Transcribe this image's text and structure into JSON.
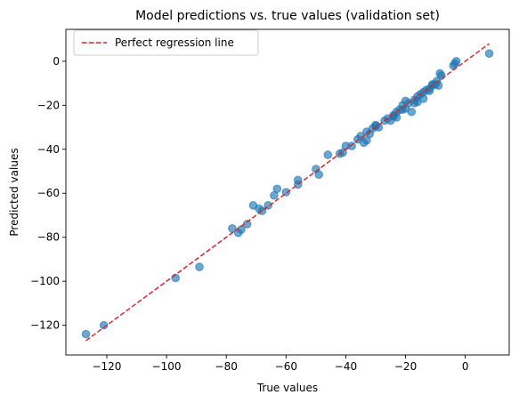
{
  "chart_data": {
    "type": "scatter",
    "title": "Model predictions vs. true values (validation set)",
    "xlabel": "True values",
    "ylabel": "Predicted values",
    "xlim": [
      -133.7,
      14.7
    ],
    "ylim": [
      -133.5,
      14.5
    ],
    "xticks": [
      -120,
      -100,
      -80,
      -60,
      -40,
      -20,
      0
    ],
    "yticks": [
      -120,
      -100,
      -80,
      -60,
      -40,
      -20,
      0
    ],
    "grid": false,
    "legend": {
      "position": "top-left",
      "entries": [
        "Perfect regression line"
      ]
    },
    "colors": {
      "points": "#1f77b4",
      "line": "#d62728"
    },
    "series": [
      {
        "kind": "scatter",
        "points": [
          [
            -127,
            -124
          ],
          [
            -121,
            -120
          ],
          [
            -97,
            -98.5
          ],
          [
            -89,
            -93.5
          ],
          [
            -78,
            -76
          ],
          [
            -76,
            -78
          ],
          [
            -75,
            -76.5
          ],
          [
            -73,
            -74
          ],
          [
            -71,
            -65.5
          ],
          [
            -69,
            -67
          ],
          [
            -68,
            -68
          ],
          [
            -66,
            -65.5
          ],
          [
            -64,
            -61
          ],
          [
            -63,
            -58
          ],
          [
            -60,
            -59.5
          ],
          [
            -56,
            -56
          ],
          [
            -56,
            -54
          ],
          [
            -50,
            -49
          ],
          [
            -49,
            -51.5
          ],
          [
            -46,
            -42.5
          ],
          [
            -42,
            -42
          ],
          [
            -41,
            -41.5
          ],
          [
            -40,
            -38.5
          ],
          [
            -38,
            -38.5
          ],
          [
            -36,
            -35.5
          ],
          [
            -35,
            -34
          ],
          [
            -34,
            -37
          ],
          [
            -33,
            -32
          ],
          [
            -33,
            -36
          ],
          [
            -32,
            -33
          ],
          [
            -31,
            -30.5
          ],
          [
            -30,
            -29.5
          ],
          [
            -30,
            -29
          ],
          [
            -29,
            -30
          ],
          [
            -27,
            -27
          ],
          [
            -26,
            -26
          ],
          [
            -25,
            -27
          ],
          [
            -24,
            -25
          ],
          [
            -24,
            -24.5
          ],
          [
            -23,
            -23
          ],
          [
            -23,
            -25.5
          ],
          [
            -22,
            -22
          ],
          [
            -21,
            -22
          ],
          [
            -21,
            -20
          ],
          [
            -20,
            -18
          ],
          [
            -20,
            -21.5
          ],
          [
            -19,
            -19
          ],
          [
            -18,
            -23
          ],
          [
            -17,
            -17.5
          ],
          [
            -17,
            -19
          ],
          [
            -16,
            -16
          ],
          [
            -16,
            -18.5
          ],
          [
            -15,
            -15
          ],
          [
            -14,
            -14
          ],
          [
            -14,
            -17
          ],
          [
            -13,
            -13
          ],
          [
            -12,
            -12.5
          ],
          [
            -12,
            -13.5
          ],
          [
            -11,
            -11
          ],
          [
            -11,
            -10.5
          ],
          [
            -10,
            -10.5
          ],
          [
            -9.5,
            -9
          ],
          [
            -9,
            -11
          ],
          [
            -8.5,
            -5.5
          ],
          [
            -8,
            -6.5
          ],
          [
            -4,
            -2
          ],
          [
            -3.5,
            -1
          ],
          [
            -3,
            0
          ],
          [
            8,
            3.5
          ]
        ]
      },
      {
        "kind": "line",
        "name": "Perfect regression line",
        "x": [
          -127,
          8
        ],
        "y": [
          -127,
          8
        ]
      }
    ]
  }
}
